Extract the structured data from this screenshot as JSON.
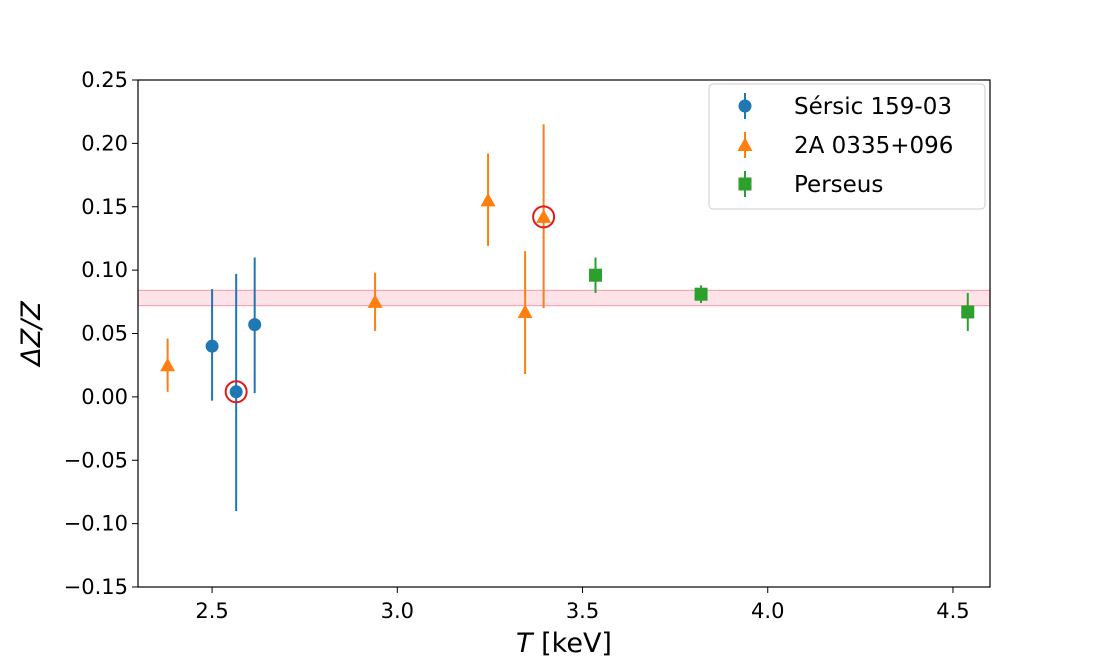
{
  "chart_data": {
    "type": "scatter",
    "title": "",
    "xlabel_italic": "T",
    "xlabel_rest": " [keV]",
    "ylabel": "ΔZ/Z",
    "xlim": [
      2.3,
      4.6
    ],
    "ylim": [
      -0.15,
      0.25
    ],
    "xticks": [
      2.5,
      3.0,
      3.5,
      4.0,
      4.5
    ],
    "xtick_labels": [
      "2.5",
      "3.0",
      "3.5",
      "4.0",
      "4.5"
    ],
    "yticks": [
      -0.15,
      -0.1,
      -0.05,
      0.0,
      0.05,
      0.1,
      0.15,
      0.2,
      0.25
    ],
    "ytick_labels": [
      "−0.15",
      "−0.10",
      "−0.05",
      "0.00",
      "0.05",
      "0.10",
      "0.15",
      "0.20",
      "0.25"
    ],
    "grid": false,
    "legend_position": "top-right",
    "band": {
      "y_low": 0.072,
      "y_high": 0.084,
      "color": "#f4a6b5"
    },
    "highlight_color": "#e31a1c",
    "series": [
      {
        "name": "Sérsic 159-03",
        "marker": "circle",
        "color": "#1f77b4",
        "points": [
          {
            "x": 2.5,
            "y": 0.04,
            "ylow": -0.003,
            "yhigh": 0.085
          },
          {
            "x": 2.565,
            "y": 0.004,
            "ylow": -0.09,
            "yhigh": 0.097,
            "highlight": true
          },
          {
            "x": 2.615,
            "y": 0.057,
            "ylow": 0.003,
            "yhigh": 0.11
          }
        ]
      },
      {
        "name": "2A 0335+096",
        "marker": "triangle",
        "color": "#ff7f0e",
        "points": [
          {
            "x": 2.38,
            "y": 0.025,
            "ylow": 0.004,
            "yhigh": 0.046
          },
          {
            "x": 2.94,
            "y": 0.075,
            "ylow": 0.052,
            "yhigh": 0.098
          },
          {
            "x": 3.245,
            "y": 0.155,
            "ylow": 0.119,
            "yhigh": 0.192
          },
          {
            "x": 3.345,
            "y": 0.067,
            "ylow": 0.018,
            "yhigh": 0.115
          },
          {
            "x": 3.395,
            "y": 0.142,
            "ylow": 0.07,
            "yhigh": 0.215,
            "highlight": true
          }
        ]
      },
      {
        "name": "Perseus",
        "marker": "square",
        "color": "#2ca02c",
        "points": [
          {
            "x": 3.535,
            "y": 0.096,
            "ylow": 0.082,
            "yhigh": 0.11
          },
          {
            "x": 3.82,
            "y": 0.081,
            "ylow": 0.074,
            "yhigh": 0.088
          },
          {
            "x": 4.54,
            "y": 0.067,
            "ylow": 0.052,
            "yhigh": 0.082
          }
        ]
      }
    ]
  }
}
